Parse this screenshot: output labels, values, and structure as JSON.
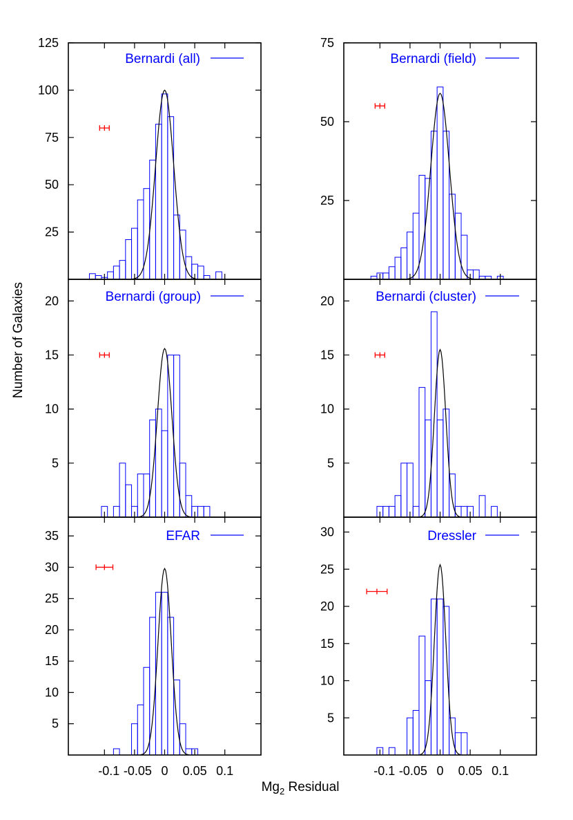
{
  "labels": {
    "ylabel": "Number of Galaxies",
    "xlabel_main": "Mg",
    "xlabel_sub": "2",
    "xlabel_rest": " Residual"
  },
  "colors": {
    "histogram": "#0000ff",
    "fit": "#000000",
    "errorbar": "#ff0000",
    "axis": "#000000"
  },
  "chart_data": [
    {
      "type": "bar",
      "legend": "Bernardi (all)",
      "xlim": [
        -0.16,
        0.16
      ],
      "ylim": [
        0,
        125
      ],
      "yticks": [
        25,
        50,
        75,
        100,
        125
      ],
      "xticks": [
        -0.1,
        -0.05,
        0,
        0.05,
        0.1
      ],
      "bin_width": 0.01,
      "bins": [
        {
          "x": -0.12,
          "y": 3
        },
        {
          "x": -0.11,
          "y": 2
        },
        {
          "x": -0.1,
          "y": 1
        },
        {
          "x": -0.09,
          "y": 4
        },
        {
          "x": -0.08,
          "y": 7
        },
        {
          "x": -0.07,
          "y": 10
        },
        {
          "x": -0.06,
          "y": 21
        },
        {
          "x": -0.05,
          "y": 27
        },
        {
          "x": -0.04,
          "y": 42
        },
        {
          "x": -0.03,
          "y": 48
        },
        {
          "x": -0.02,
          "y": 63
        },
        {
          "x": -0.01,
          "y": 82
        },
        {
          "x": 0.0,
          "y": 98
        },
        {
          "x": 0.01,
          "y": 86
        },
        {
          "x": 0.02,
          "y": 34
        },
        {
          "x": 0.03,
          "y": 26
        },
        {
          "x": 0.04,
          "y": 12
        },
        {
          "x": 0.05,
          "y": 8
        },
        {
          "x": 0.06,
          "y": 7
        },
        {
          "x": 0.07,
          "y": 2
        },
        {
          "x": 0.09,
          "y": 4
        }
      ],
      "gaussian": {
        "amplitude": 100,
        "mean": 0.0,
        "sigma": 0.015
      },
      "errorbar": {
        "x": -0.1,
        "y": 80,
        "xerr": 0.008
      }
    },
    {
      "type": "bar",
      "legend": "Bernardi (field)",
      "xlim": [
        -0.16,
        0.16
      ],
      "ylim": [
        0,
        75
      ],
      "yticks": [
        25,
        50,
        75
      ],
      "xticks": [
        -0.1,
        -0.05,
        0,
        0.05,
        0.1
      ],
      "bin_width": 0.01,
      "bins": [
        {
          "x": -0.11,
          "y": 1
        },
        {
          "x": -0.1,
          "y": 2
        },
        {
          "x": -0.09,
          "y": 2
        },
        {
          "x": -0.08,
          "y": 4
        },
        {
          "x": -0.07,
          "y": 7
        },
        {
          "x": -0.06,
          "y": 10
        },
        {
          "x": -0.05,
          "y": 15
        },
        {
          "x": -0.04,
          "y": 21
        },
        {
          "x": -0.03,
          "y": 33
        },
        {
          "x": -0.02,
          "y": 32
        },
        {
          "x": -0.01,
          "y": 47
        },
        {
          "x": 0.0,
          "y": 61
        },
        {
          "x": 0.01,
          "y": 47
        },
        {
          "x": 0.02,
          "y": 27
        },
        {
          "x": 0.03,
          "y": 21
        },
        {
          "x": 0.04,
          "y": 14
        },
        {
          "x": 0.05,
          "y": 3
        },
        {
          "x": 0.06,
          "y": 3
        },
        {
          "x": 0.07,
          "y": 1
        },
        {
          "x": 0.08,
          "y": 1
        },
        {
          "x": 0.1,
          "y": 1
        }
      ],
      "gaussian": {
        "amplitude": 59,
        "mean": 0.0,
        "sigma": 0.0155
      },
      "errorbar": {
        "x": -0.1,
        "y": 55,
        "xerr": 0.008
      }
    },
    {
      "type": "bar",
      "legend": "Bernardi (group)",
      "xlim": [
        -0.16,
        0.16
      ],
      "ylim": [
        0,
        22
      ],
      "yticks": [
        5,
        10,
        15,
        20
      ],
      "xticks": [
        -0.1,
        -0.05,
        0,
        0.05,
        0.1
      ],
      "bin_width": 0.01,
      "bins": [
        {
          "x": -0.1,
          "y": 1
        },
        {
          "x": -0.08,
          "y": 1
        },
        {
          "x": -0.07,
          "y": 5
        },
        {
          "x": -0.06,
          "y": 3
        },
        {
          "x": -0.05,
          "y": 1
        },
        {
          "x": -0.04,
          "y": 4
        },
        {
          "x": -0.03,
          "y": 4
        },
        {
          "x": -0.02,
          "y": 9
        },
        {
          "x": -0.01,
          "y": 10
        },
        {
          "x": 0.0,
          "y": 8
        },
        {
          "x": 0.01,
          "y": 15
        },
        {
          "x": 0.02,
          "y": 15
        },
        {
          "x": 0.03,
          "y": 5
        },
        {
          "x": 0.04,
          "y": 2
        },
        {
          "x": 0.05,
          "y": 1
        },
        {
          "x": 0.06,
          "y": 1
        },
        {
          "x": 0.07,
          "y": 1
        }
      ],
      "gaussian": {
        "amplitude": 15.6,
        "mean": 0.0,
        "sigma": 0.012
      },
      "errorbar": {
        "x": -0.1,
        "y": 15,
        "xerr": 0.008
      }
    },
    {
      "type": "bar",
      "legend": "Bernardi (cluster)",
      "xlim": [
        -0.16,
        0.16
      ],
      "ylim": [
        0,
        22
      ],
      "yticks": [
        5,
        10,
        15,
        20
      ],
      "xticks": [
        -0.1,
        -0.05,
        0,
        0.05,
        0.1
      ],
      "bin_width": 0.01,
      "bins": [
        {
          "x": -0.1,
          "y": 1
        },
        {
          "x": -0.09,
          "y": 1
        },
        {
          "x": -0.08,
          "y": 1
        },
        {
          "x": -0.07,
          "y": 2
        },
        {
          "x": -0.06,
          "y": 5
        },
        {
          "x": -0.05,
          "y": 5
        },
        {
          "x": -0.04,
          "y": 1
        },
        {
          "x": -0.03,
          "y": 12
        },
        {
          "x": -0.02,
          "y": 9
        },
        {
          "x": -0.01,
          "y": 19
        },
        {
          "x": 0.0,
          "y": 9
        },
        {
          "x": 0.01,
          "y": 10
        },
        {
          "x": 0.02,
          "y": 4
        },
        {
          "x": 0.03,
          "y": 1
        },
        {
          "x": 0.04,
          "y": 1
        },
        {
          "x": 0.05,
          "y": 1
        },
        {
          "x": 0.07,
          "y": 2
        },
        {
          "x": 0.09,
          "y": 1
        }
      ],
      "gaussian": {
        "amplitude": 15.5,
        "mean": 0.0,
        "sigma": 0.0095
      },
      "errorbar": {
        "x": -0.1,
        "y": 15,
        "xerr": 0.008
      }
    },
    {
      "type": "bar",
      "legend": "EFAR",
      "xlim": [
        -0.16,
        0.16
      ],
      "ylim": [
        0,
        38
      ],
      "yticks": [
        5,
        10,
        15,
        20,
        25,
        30,
        35
      ],
      "xticks": [
        -0.1,
        -0.05,
        0,
        0.05,
        0.1
      ],
      "xticklabels": [
        "-0.1",
        "-0.05",
        "0",
        "0.05",
        "0.1"
      ],
      "bin_width": 0.01,
      "bins": [
        {
          "x": -0.08,
          "y": 1
        },
        {
          "x": -0.05,
          "y": 5
        },
        {
          "x": -0.04,
          "y": 8
        },
        {
          "x": -0.03,
          "y": 14
        },
        {
          "x": -0.02,
          "y": 22
        },
        {
          "x": -0.01,
          "y": 26
        },
        {
          "x": 0.0,
          "y": 26
        },
        {
          "x": 0.01,
          "y": 22
        },
        {
          "x": 0.02,
          "y": 12
        },
        {
          "x": 0.03,
          "y": 5
        },
        {
          "x": 0.04,
          "y": 1
        },
        {
          "x": 0.05,
          "y": 1
        }
      ],
      "gaussian": {
        "amplitude": 29.8,
        "mean": 0.0,
        "sigma": 0.011
      },
      "errorbar": {
        "x": -0.1,
        "y": 30,
        "xerr": 0.014
      }
    },
    {
      "type": "bar",
      "legend": "Dressler",
      "xlim": [
        -0.16,
        0.16
      ],
      "ylim": [
        0,
        32
      ],
      "yticks": [
        5,
        10,
        15,
        20,
        25,
        30
      ],
      "xticks": [
        -0.1,
        -0.05,
        0,
        0.05,
        0.1
      ],
      "xticklabels": [
        "-0.1",
        "-0.05",
        "0",
        "0.05",
        "0.1"
      ],
      "bin_width": 0.01,
      "bins": [
        {
          "x": -0.1,
          "y": 1
        },
        {
          "x": -0.08,
          "y": 1
        },
        {
          "x": -0.05,
          "y": 5
        },
        {
          "x": -0.04,
          "y": 6
        },
        {
          "x": -0.03,
          "y": 16
        },
        {
          "x": -0.02,
          "y": 10
        },
        {
          "x": -0.01,
          "y": 21
        },
        {
          "x": 0.0,
          "y": 21
        },
        {
          "x": 0.01,
          "y": 20
        },
        {
          "x": 0.02,
          "y": 5
        },
        {
          "x": 0.03,
          "y": 3
        },
        {
          "x": 0.04,
          "y": 3
        }
      ],
      "gaussian": {
        "amplitude": 25.6,
        "mean": 0.0,
        "sigma": 0.0095
      },
      "errorbar": {
        "x": -0.105,
        "y": 22,
        "xerr": 0.017
      }
    }
  ]
}
